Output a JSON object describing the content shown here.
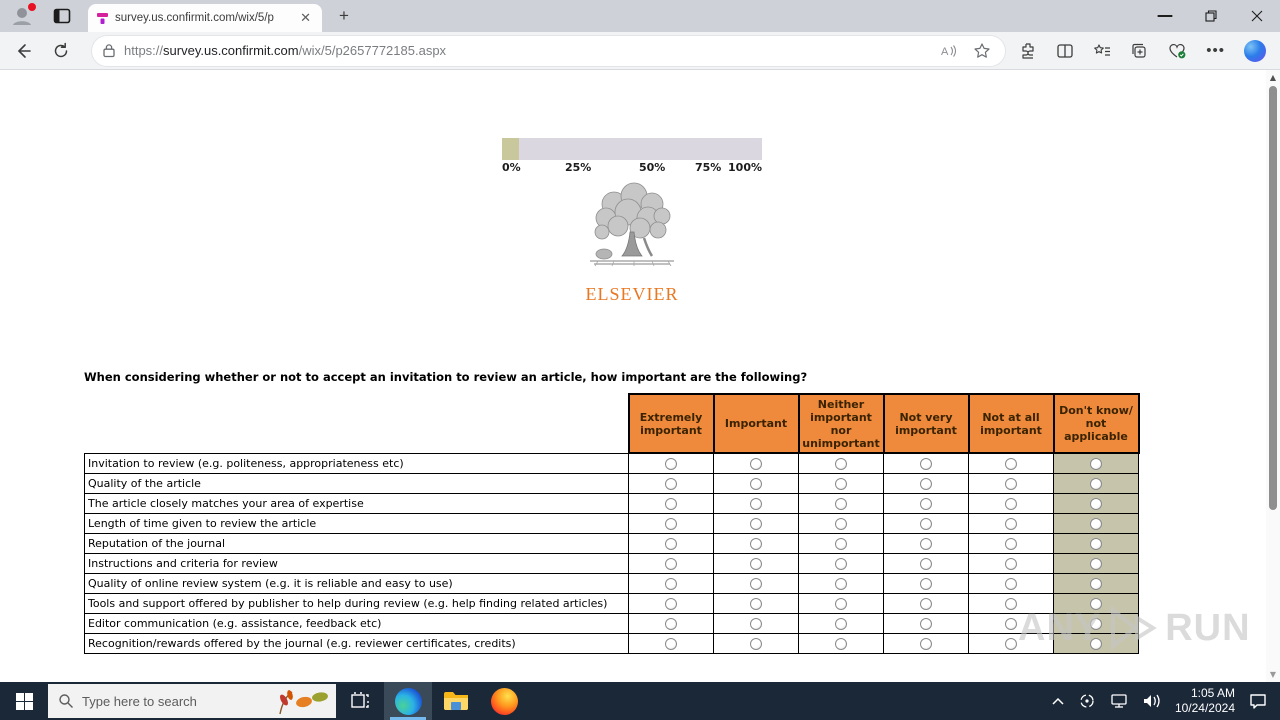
{
  "browser": {
    "tab_title": "survey.us.confirmit.com/wix/5/p",
    "new_tab_glyph": "+",
    "url": {
      "scheme": "https://",
      "host": "survey.us.confirmit.com",
      "path": "/wix/5/p2657772185.aspx"
    }
  },
  "page": {
    "progress": {
      "labels": [
        "0%",
        "25%",
        "50%",
        "75%",
        "100%"
      ],
      "value_percent": 6.5
    },
    "logo_text": "ELSEVIER",
    "question": "When considering whether or not to accept an invitation to review an article, how important are the following?",
    "table": {
      "columns": [
        "Extremely important",
        "Important",
        "Neither important nor unimportant",
        "Not very important",
        "Not at all important",
        "Don't know/ not applicable"
      ],
      "rows": [
        "Invitation to review (e.g. politeness, appropriateness etc)",
        "Quality of the article",
        "The article closely matches your area of expertise",
        "Length of time given to review the article",
        "Reputation of the journal",
        "Instructions and criteria for review",
        "Quality of online review system (e.g. it is reliable and easy to use)",
        "Tools and support offered by publisher to help during review (e.g. help finding related articles)",
        "Editor communication (e.g. assistance, feedback etc)",
        "Recognition/rewards offered by the journal (e.g. reviewer certificates, credits)"
      ]
    }
  },
  "watermark": {
    "left": "ANY",
    "right": "RUN"
  },
  "taskbar": {
    "search_placeholder": "Type here to search",
    "clock_time": "1:05 AM",
    "clock_date": "10/24/2024"
  },
  "colors": {
    "header_bg": "#EF8A3C",
    "dont_know_bg": "#C6C5AC",
    "progress_fill": "#C9C79C",
    "progress_track": "#DAD7E1",
    "elsevier_orange": "#E87722",
    "taskbar_bg": "#1B2838",
    "active_underline": "#76B9ED"
  }
}
